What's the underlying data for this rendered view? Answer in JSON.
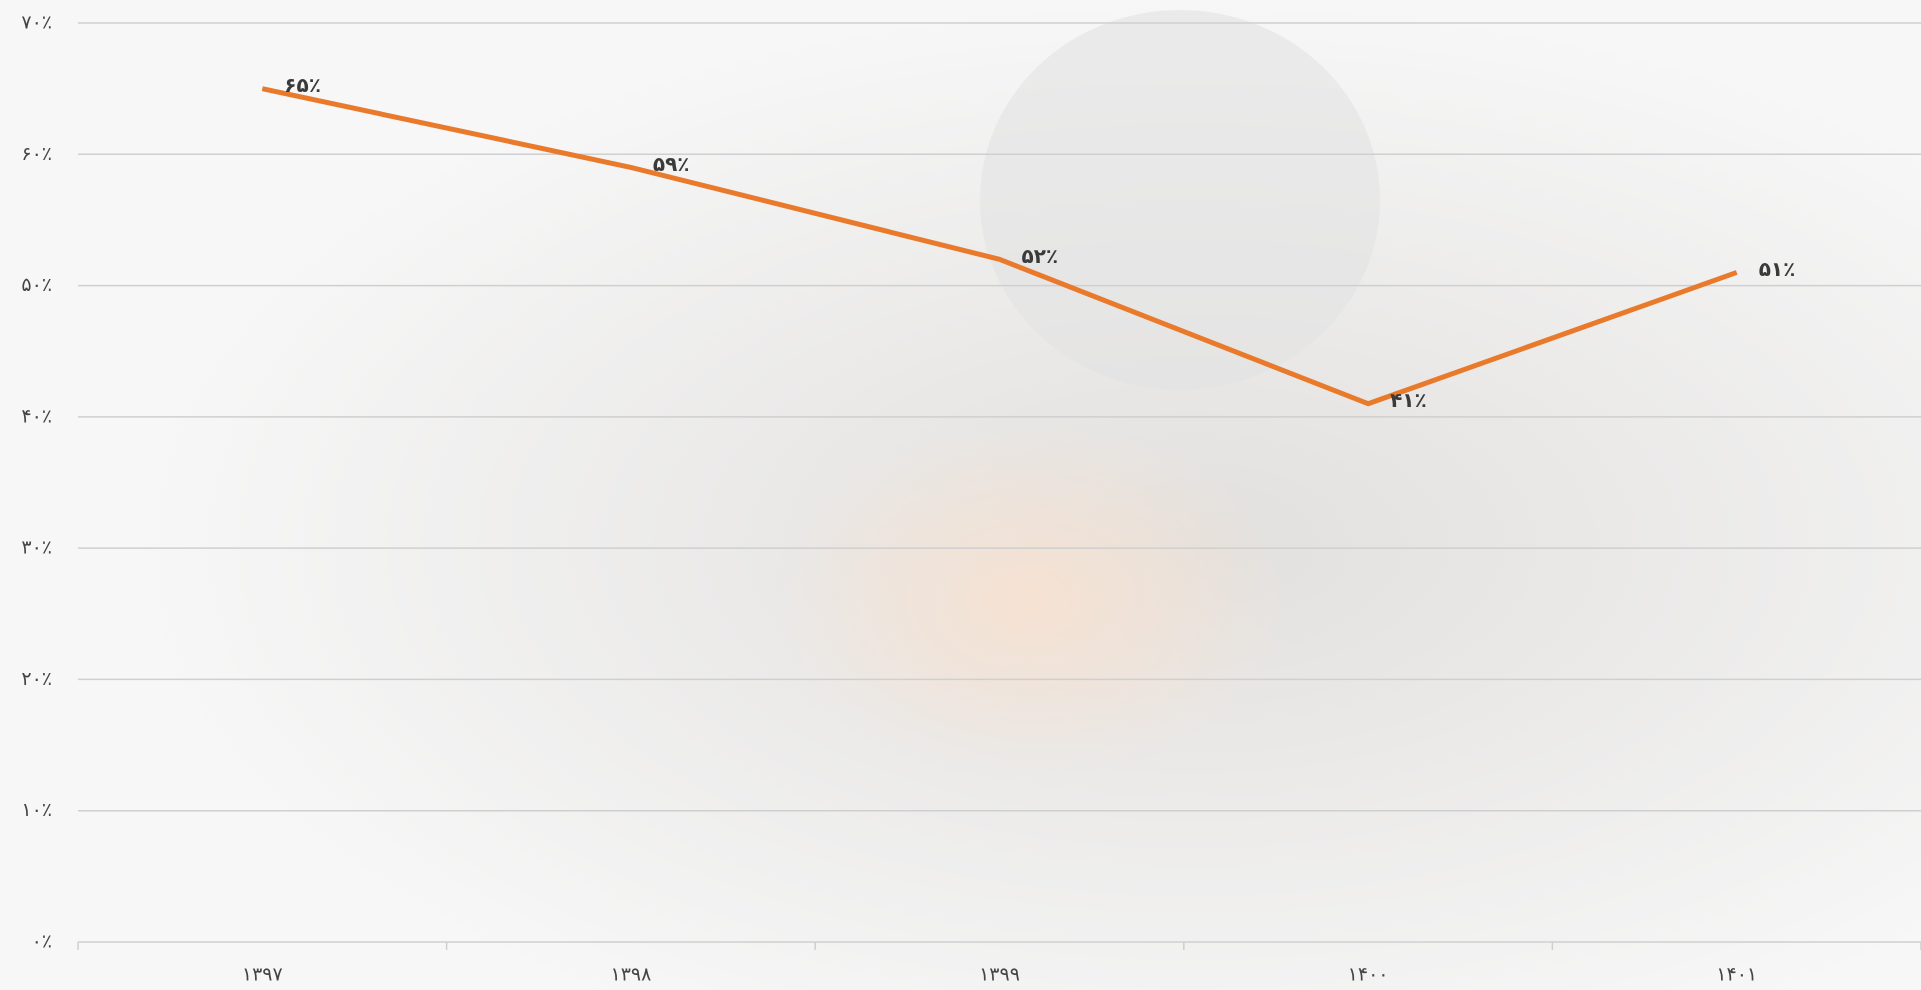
{
  "chart_data": {
    "type": "line",
    "categories": [
      "۱۳۹۷",
      "۱۳۹۸",
      "۱۳۹۹",
      "۱۴۰۰",
      "۱۴۰۱"
    ],
    "values": [
      65,
      59,
      52,
      41,
      51
    ],
    "value_labels": [
      "۶۵٪",
      "۵۹٪",
      "۵۲٪",
      "۴۱٪",
      "۵۱٪"
    ],
    "color": "#e97a2b",
    "ylim": [
      0,
      70
    ],
    "yticks": [
      {
        "value": 0,
        "label": "۰٪"
      },
      {
        "value": 10,
        "label": "۱۰٪"
      },
      {
        "value": 20,
        "label": "۲۰٪"
      },
      {
        "value": 30,
        "label": "۳۰٪"
      },
      {
        "value": 40,
        "label": "۴۰٪"
      },
      {
        "value": 50,
        "label": "۵۰٪"
      },
      {
        "value": 60,
        "label": "۶۰٪"
      },
      {
        "value": 70,
        "label": "۷۰٪"
      }
    ],
    "grid": true
  }
}
